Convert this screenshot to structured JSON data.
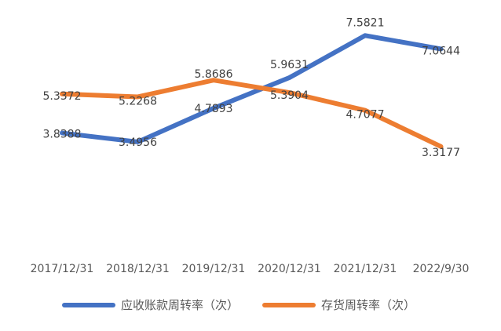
{
  "chart_data": {
    "type": "line",
    "title": "",
    "xlabel": "",
    "ylabel": "",
    "categories": [
      "2017/12/31",
      "2018/12/31",
      "2019/12/31",
      "2020/12/31",
      "2021/12/31",
      "2022/9/30"
    ],
    "ylim": [
      0,
      8
    ],
    "grid": false,
    "legend_position": "bottom",
    "series": [
      {
        "name": "应收账款周转率（次）",
        "color": "#4472C4",
        "values": [
          3.8388,
          3.4956,
          4.7893,
          5.9631,
          7.5821,
          7.0644
        ],
        "labels": [
          "3.8388",
          "3.4956",
          "4.7893",
          "5.9631",
          "7.5821",
          "7.0644"
        ]
      },
      {
        "name": "存货周转率（次）",
        "color": "#ED7D31",
        "values": [
          5.3372,
          5.2268,
          5.8686,
          5.3904,
          4.7077,
          3.3177
        ],
        "labels": [
          "5.3372",
          "5.2268",
          "5.8686",
          "5.3904",
          "4.7077",
          "3.3177"
        ]
      }
    ]
  }
}
